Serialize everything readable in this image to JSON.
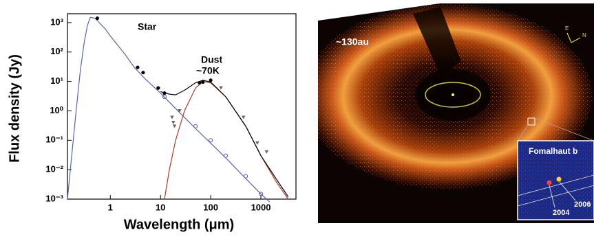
{
  "chart_data": {
    "type": "line",
    "xlabel": "Wavelength (μm)",
    "ylabel": "Flux density (Jy)",
    "annotations": [
      "Star",
      "Dust",
      "~70K"
    ],
    "log_x": true,
    "log_y": true,
    "xlim": [
      0.14,
      5000
    ],
    "ylim": [
      0.001,
      2000
    ],
    "xticks": [
      1,
      10,
      100,
      1000
    ],
    "yticks": [
      {
        "value": 0.001,
        "label": "10⁻³"
      },
      {
        "value": 0.01,
        "label": "10⁻²"
      },
      {
        "value": 0.1,
        "label": "10⁻¹"
      },
      {
        "value": 1,
        "label": "10⁰"
      },
      {
        "value": 10,
        "label": "10¹"
      },
      {
        "value": 100,
        "label": "10²"
      },
      {
        "value": 1000,
        "label": "10³"
      }
    ],
    "series": [
      {
        "style": "line",
        "color": "#5a63a8",
        "x": [
          0.14,
          0.2,
          0.25,
          0.3,
          0.35,
          0.4,
          0.5,
          0.6,
          0.8,
          1,
          2,
          3,
          5,
          10,
          20,
          50,
          100,
          200,
          500,
          1000,
          1500
        ],
        "values": [
          0.001,
          0.5,
          20,
          200,
          800,
          1500,
          1400,
          1000,
          600,
          350,
          80,
          30,
          12,
          4,
          1.2,
          0.25,
          0.08,
          0.025,
          0.005,
          0.0015,
          0.0008
        ]
      },
      {
        "style": "line",
        "color": "#a83a2a",
        "x": [
          12,
          15,
          20,
          30,
          50,
          70,
          100,
          200,
          500,
          1000,
          2000,
          3500
        ],
        "values": [
          0.001,
          0.01,
          0.1,
          1,
          6,
          10,
          9,
          3,
          0.3,
          0.03,
          0.004,
          0.001
        ]
      },
      {
        "style": "line",
        "color": "#000000",
        "x": [
          10,
          15,
          20,
          30,
          50,
          70,
          100,
          200,
          500,
          1000,
          2000,
          3500
        ],
        "values": [
          4.5,
          3.7,
          3.5,
          5,
          9,
          11,
          9.5,
          3,
          0.3,
          0.03,
          0.005,
          0.0012
        ]
      },
      {
        "style": "circle-filled",
        "color": "#000000",
        "x": [
          0.55,
          3.5,
          4.5,
          9,
          12,
          60,
          70,
          100
        ],
        "values": [
          1400,
          30,
          20,
          6,
          4,
          9,
          9.5,
          11
        ]
      },
      {
        "style": "circle-open",
        "color": "#5a63a8",
        "x": [
          12,
          50,
          100,
          200,
          500,
          1000
        ],
        "values": [
          3,
          0.3,
          0.1,
          0.03,
          0.006,
          0.0015
        ]
      },
      {
        "style": "triangle-down",
        "color": "#666666",
        "x": [
          17,
          18,
          19,
          24,
          160,
          450,
          850,
          1300
        ],
        "values": [
          0.6,
          0.4,
          0.3,
          1,
          6,
          0.6,
          0.08,
          0.04
        ]
      }
    ]
  },
  "image_labels": {
    "scale": "~130au",
    "inset_title": "Fomalhaut b",
    "epoch_1": "2004",
    "epoch_2": "2006",
    "east": "E",
    "north": "N"
  }
}
